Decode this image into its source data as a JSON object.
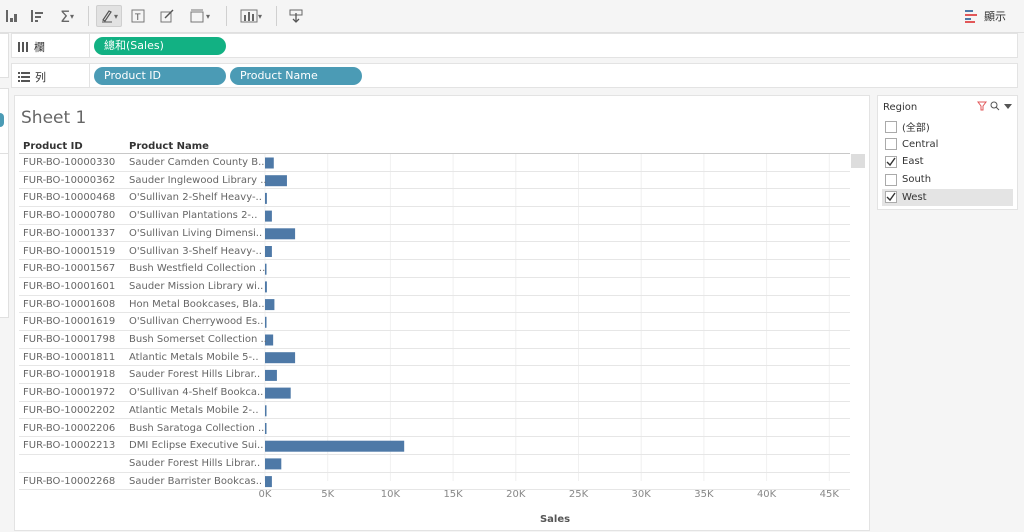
{
  "toolbar": {
    "show_label": "顯示"
  },
  "shelves": {
    "columns": {
      "label": "欄",
      "pills": [
        "總和(Sales)"
      ]
    },
    "rows": {
      "label": "列",
      "pills": [
        "Product ID",
        "Product Name"
      ]
    }
  },
  "sheet": {
    "title": "Sheet 1",
    "col_product_id": "Product ID",
    "col_product_name": "Product Name"
  },
  "filter": {
    "title": "Region",
    "items": [
      {
        "label": "(全部)",
        "checked": false,
        "selected": false
      },
      {
        "label": "Central",
        "checked": false,
        "selected": false
      },
      {
        "label": "East",
        "checked": true,
        "selected": false
      },
      {
        "label": "South",
        "checked": false,
        "selected": false
      },
      {
        "label": "West",
        "checked": true,
        "selected": true
      }
    ]
  },
  "colors": {
    "bar": "#4e79a7",
    "green_pill": "#12b183",
    "blue_pill": "#4b9bb5"
  },
  "chart_data": {
    "type": "bar",
    "orientation": "horizontal",
    "xlabel": "Sales",
    "xlim": [
      0,
      46000
    ],
    "ticks": [
      "0K",
      "5K",
      "10K",
      "15K",
      "20K",
      "25K",
      "30K",
      "35K",
      "40K",
      "45K"
    ],
    "tick_values": [
      0,
      5000,
      10000,
      15000,
      20000,
      25000,
      30000,
      35000,
      40000,
      45000
    ],
    "rows": [
      {
        "id": "FUR-BO-10000330",
        "name": "Sauder Camden County B..",
        "value": 700
      },
      {
        "id": "FUR-BO-10000362",
        "name": "Sauder Inglewood Library ..",
        "value": 1750
      },
      {
        "id": "FUR-BO-10000468",
        "name": "O'Sullivan 2-Shelf Heavy-..",
        "value": 150
      },
      {
        "id": "FUR-BO-10000780",
        "name": "O'Sullivan Plantations 2-..",
        "value": 550
      },
      {
        "id": "FUR-BO-10001337",
        "name": "O'Sullivan Living Dimensi..",
        "value": 2400
      },
      {
        "id": "FUR-BO-10001519",
        "name": "O'Sullivan 3-Shelf Heavy-..",
        "value": 550
      },
      {
        "id": "FUR-BO-10001567",
        "name": "Bush Westfield Collection ..",
        "value": 40
      },
      {
        "id": "FUR-BO-10001601",
        "name": "Sauder Mission Library wi..",
        "value": 150
      },
      {
        "id": "FUR-BO-10001608",
        "name": "Hon Metal Bookcases, Bla..",
        "value": 750
      },
      {
        "id": "FUR-BO-10001619",
        "name": "O'Sullivan Cherrywood Es..",
        "value": 40
      },
      {
        "id": "FUR-BO-10001798",
        "name": "Bush Somerset Collection ..",
        "value": 650
      },
      {
        "id": "FUR-BO-10001811",
        "name": "Atlantic Metals Mobile 5-..",
        "value": 2400
      },
      {
        "id": "FUR-BO-10001918",
        "name": "Sauder Forest Hills Librar..",
        "value": 950
      },
      {
        "id": "FUR-BO-10001972",
        "name": "O'Sullivan 4-Shelf Bookca..",
        "value": 2050
      },
      {
        "id": "FUR-BO-10002202",
        "name": "Atlantic Metals Mobile 2-..",
        "value": 40
      },
      {
        "id": "FUR-BO-10002206",
        "name": "Bush Saratoga Collection ..",
        "value": 100
      },
      {
        "id": "FUR-BO-10002213",
        "name": "DMI Eclipse Executive Sui..",
        "value": 11100
      },
      {
        "id": "",
        "name": "Sauder Forest Hills Librar..",
        "value": 1300
      },
      {
        "id": "FUR-BO-10002268",
        "name": "Sauder Barrister Bookcas..",
        "value": 550
      }
    ]
  }
}
